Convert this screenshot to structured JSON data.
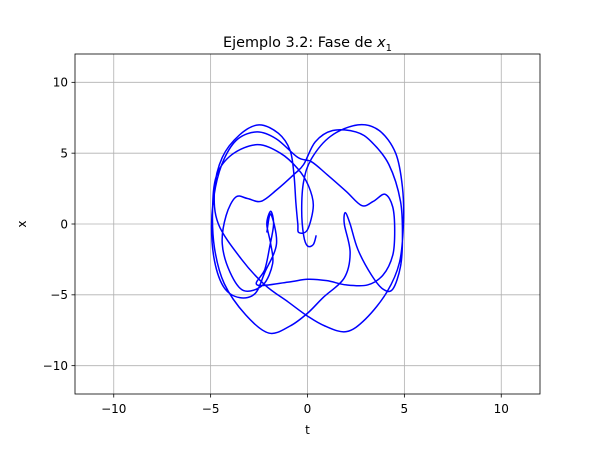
{
  "chart_data": {
    "type": "line",
    "title_main": "Ejemplo 3.2: Fase de ",
    "title_var": "x",
    "title_sub": "1",
    "xlabel": "t",
    "ylabel": "x",
    "xlim": [
      -12,
      12
    ],
    "ylim": [
      -12,
      12
    ],
    "xticks": [
      -10,
      -5,
      0,
      5,
      10
    ],
    "yticks": [
      -10,
      -5,
      0,
      5,
      10
    ],
    "xtick_labels": [
      "−10",
      "−5",
      "0",
      "5",
      "10"
    ],
    "ytick_labels": [
      "−10",
      "−5",
      "0",
      "5",
      "10"
    ],
    "grid": true,
    "series": [
      {
        "color": "#0000ff",
        "points": [
          [
            0.45,
            -0.8
          ],
          [
            0.3,
            -1.45
          ],
          [
            0.0,
            -1.55
          ],
          [
            -0.2,
            -0.8
          ],
          [
            -0.3,
            1.0
          ],
          [
            -0.2,
            3.0
          ],
          [
            0.2,
            4.6
          ],
          [
            1.2,
            6.2
          ],
          [
            2.6,
            7.0
          ],
          [
            3.7,
            6.6
          ],
          [
            4.55,
            5.0
          ],
          [
            4.9,
            2.6
          ],
          [
            4.95,
            0.0
          ],
          [
            4.75,
            -2.7
          ],
          [
            4.1,
            -4.8
          ],
          [
            3.0,
            -6.7
          ],
          [
            2.0,
            -7.6
          ],
          [
            0.9,
            -7.2
          ],
          [
            0.0,
            -6.5
          ],
          [
            -1.0,
            -5.5
          ],
          [
            -2.2,
            -4.3
          ],
          [
            -3.4,
            -2.5
          ],
          [
            -4.6,
            0.0
          ],
          [
            -4.8,
            2.4
          ],
          [
            -4.4,
            4.7
          ],
          [
            -3.5,
            6.3
          ],
          [
            -2.5,
            7.0
          ],
          [
            -1.5,
            6.4
          ],
          [
            -0.9,
            5.2
          ],
          [
            -0.7,
            3.5
          ],
          [
            -0.6,
            1.5
          ],
          [
            -0.5,
            0.0
          ],
          [
            -0.45,
            -0.6
          ],
          [
            0.0,
            -0.4
          ],
          [
            0.3,
            1.3
          ],
          [
            0.05,
            2.7
          ],
          [
            -0.5,
            3.9
          ],
          [
            -1.4,
            5.0
          ],
          [
            -2.6,
            5.6
          ],
          [
            -3.9,
            4.9
          ],
          [
            -4.7,
            3.4
          ],
          [
            -4.9,
            1.0
          ],
          [
            -4.8,
            -1.7
          ],
          [
            -4.3,
            -4.2
          ],
          [
            -3.2,
            -6.4
          ],
          [
            -2.0,
            -7.7
          ],
          [
            -0.9,
            -7.2
          ],
          [
            0.0,
            -6.3
          ],
          [
            0.8,
            -5.2
          ],
          [
            1.9,
            -3.8
          ],
          [
            2.2,
            -2.0
          ],
          [
            1.9,
            0.0
          ],
          [
            1.95,
            0.8
          ],
          [
            2.2,
            0.0
          ],
          [
            2.6,
            -1.8
          ],
          [
            3.3,
            -3.6
          ],
          [
            3.9,
            -4.6
          ],
          [
            4.4,
            -4.6
          ],
          [
            4.8,
            -3.0
          ],
          [
            4.9,
            -1.0
          ],
          [
            4.8,
            1.6
          ],
          [
            4.2,
            4.2
          ],
          [
            3.3,
            5.8
          ],
          [
            2.5,
            6.5
          ],
          [
            1.3,
            6.6
          ],
          [
            0.4,
            5.8
          ],
          [
            -0.2,
            4.2
          ],
          [
            -0.7,
            3.5
          ],
          [
            -1.6,
            2.4
          ],
          [
            -2.4,
            1.6
          ],
          [
            -3.1,
            1.8
          ],
          [
            -3.7,
            1.9
          ],
          [
            -4.2,
            0.6
          ],
          [
            -4.4,
            -1.4
          ],
          [
            -4.0,
            -3.4
          ],
          [
            -3.3,
            -4.7
          ],
          [
            -2.3,
            -4.3
          ],
          [
            -1.8,
            -2.8
          ],
          [
            -1.9,
            -1.4
          ],
          [
            -2.1,
            0.0
          ],
          [
            -1.9,
            0.9
          ],
          [
            -1.75,
            0.0
          ],
          [
            -1.95,
            -1.6
          ],
          [
            -2.2,
            -3.2
          ],
          [
            -2.6,
            -4.3
          ],
          [
            -1.0,
            -4.1
          ],
          [
            0.0,
            -3.9
          ],
          [
            1.0,
            -4.0
          ],
          [
            2.0,
            -4.3
          ],
          [
            3.1,
            -4.3
          ],
          [
            3.9,
            -3.6
          ],
          [
            4.4,
            -2.2
          ],
          [
            4.5,
            -0.5
          ],
          [
            4.4,
            1.2
          ],
          [
            4.0,
            2.1
          ],
          [
            3.4,
            1.6
          ],
          [
            2.8,
            1.3
          ],
          [
            2.0,
            2.3
          ],
          [
            1.0,
            3.5
          ],
          [
            0.2,
            4.4
          ],
          [
            -0.5,
            4.7
          ],
          [
            -1.6,
            6.0
          ],
          [
            -2.6,
            6.5
          ],
          [
            -3.6,
            6.0
          ],
          [
            -4.3,
            4.6
          ],
          [
            -4.75,
            2.6
          ],
          [
            -4.95,
            0.0
          ],
          [
            -4.8,
            -2.6
          ],
          [
            -4.3,
            -4.5
          ],
          [
            -3.5,
            -5.2
          ],
          [
            -2.7,
            -4.9
          ],
          [
            -2.2,
            -3.4
          ],
          [
            -1.6,
            -1.4
          ],
          [
            -1.9,
            0.7
          ],
          [
            -2.1,
            -0.6
          ]
        ]
      }
    ]
  }
}
